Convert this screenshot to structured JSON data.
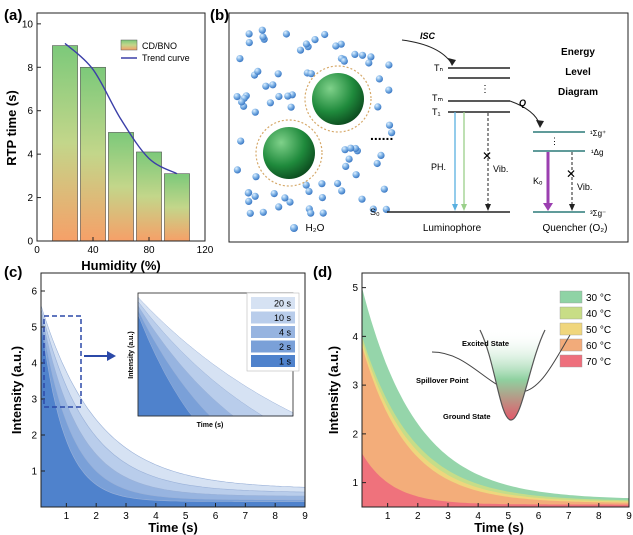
{
  "panels": {
    "a": "(a)",
    "b": "(b)",
    "c": "(c)",
    "d": "(d)"
  },
  "colors": {
    "bar_top": "#7cc97a",
    "bar_bottom": "#f6a068",
    "trend": "#3b3fa8",
    "c_fill": "#3f72c4",
    "c_light": "#c9d8ee"
  },
  "chart_data": [
    {
      "panel": "a",
      "type": "bar",
      "ylabel": "RTP time (s)",
      "xlabel": "Humidity (%)",
      "categories": [
        20,
        40,
        60,
        80,
        100
      ],
      "series": [
        {
          "name": "CD/BNO",
          "values": [
            9.0,
            8.0,
            5.0,
            4.1,
            3.1
          ]
        }
      ],
      "trend": {
        "name": "Trend curve",
        "x": [
          20,
          40,
          60,
          80,
          100
        ],
        "y": [
          9.1,
          7.9,
          5.6,
          3.8,
          3.1
        ]
      },
      "xlim": [
        0,
        120
      ],
      "ylim": [
        0,
        10.5
      ],
      "xticks": [
        "0",
        "40",
        "80",
        "120"
      ],
      "yticks": [
        "0",
        "2",
        "4",
        "6",
        "8",
        "10"
      ],
      "legend": "top-right"
    },
    {
      "panel": "c",
      "type": "area",
      "xlabel": "Time (s)",
      "ylabel": "Intensity (a.u.)",
      "xlim": [
        0.15,
        9
      ],
      "ylim": [
        0,
        6.5
      ],
      "xticks": [
        "1",
        "2",
        "3",
        "4",
        "5",
        "6",
        "7",
        "8",
        "9"
      ],
      "yticks": [
        "1",
        "2",
        "3",
        "4",
        "5",
        "6"
      ],
      "series": [
        {
          "name": "20 s",
          "y0": 5.6,
          "tau": 1.9,
          "base": 0.5
        },
        {
          "name": "10 s",
          "y0": 5.5,
          "tau": 1.55,
          "base": 0.4
        },
        {
          "name": "4 s",
          "y0": 5.4,
          "tau": 1.25,
          "base": 0.3
        },
        {
          "name": "2 s",
          "y0": 5.3,
          "tau": 1.0,
          "base": 0.2
        },
        {
          "name": "1 s",
          "y0": 5.2,
          "tau": 0.78,
          "base": 0.15
        }
      ],
      "inset": {
        "xlabel": "Time (s)",
        "ylabel": "Intensity (a.u.)"
      },
      "legend": "top-right"
    },
    {
      "panel": "d",
      "type": "area",
      "xlabel": "Time (s)",
      "ylabel": "Intensity (a.u.)",
      "xlim": [
        0.15,
        9
      ],
      "ylim": [
        0.5,
        5.3
      ],
      "xticks": [
        "1",
        "2",
        "3",
        "4",
        "5",
        "6",
        "7",
        "8",
        "9"
      ],
      "yticks": [
        "1",
        "2",
        "3",
        "4",
        "5"
      ],
      "series": [
        {
          "name": "30 °C",
          "y0": 5.0,
          "tau": 1.8,
          "base": 0.65
        },
        {
          "name": "40 °C",
          "y0": 4.0,
          "tau": 1.7,
          "base": 0.62
        },
        {
          "name": "50 °C",
          "y0": 3.9,
          "tau": 1.6,
          "base": 0.6
        },
        {
          "name": "60 °C",
          "y0": 3.8,
          "tau": 1.5,
          "base": 0.58
        },
        {
          "name": "70 °C",
          "y0": 1.6,
          "tau": 1.0,
          "base": 0.55
        }
      ],
      "inset_labels": {
        "excited": "Excited State",
        "spillover": "Spillover Point",
        "ground": "Ground State"
      },
      "legend": "top-right"
    }
  ],
  "diagram_b": {
    "h2o": "H₂O",
    "luminophore": "Luminophore",
    "quencher": "Quencher (O₂)",
    "isc": "ISC",
    "q": "Q",
    "ph": "PH.",
    "vib1": "Vib.",
    "vib2": "Vib.",
    "ko": "Kₒ",
    "tn": "Tₙ",
    "tm": "Tₘ",
    "t1": "T₁",
    "s0": "S₀",
    "sigma_g_plus": "¹Σg⁺",
    "delta_g": "¹Δg",
    "sigma_g_minus": "³Σg⁻",
    "energy_title": [
      "Energy",
      "Level",
      "Diagram"
    ]
  }
}
